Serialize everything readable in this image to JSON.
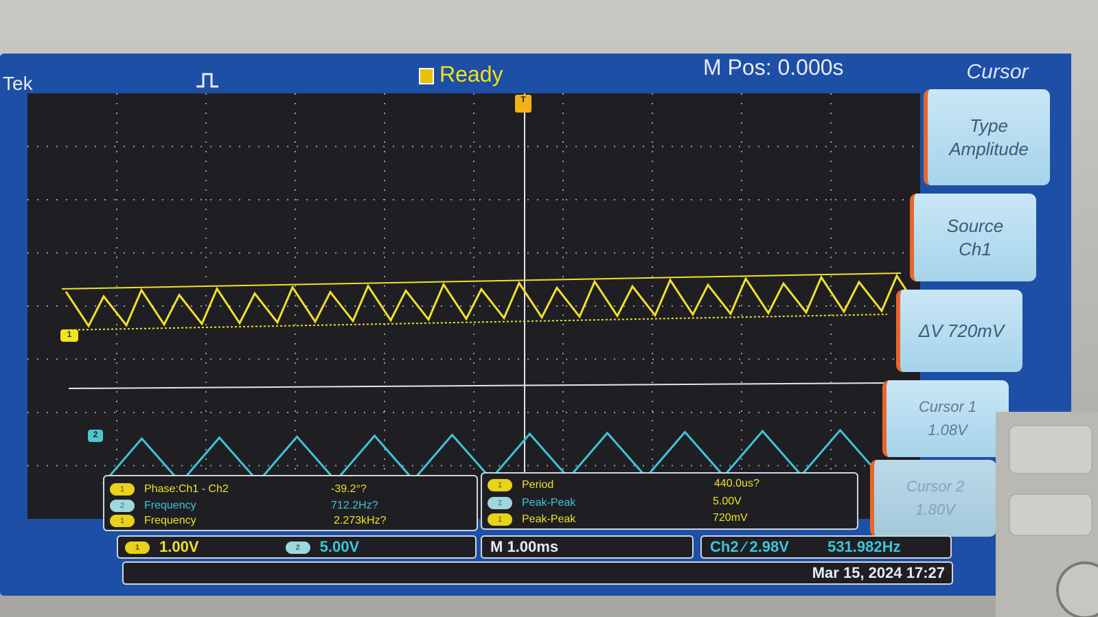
{
  "header": {
    "brand": "Tek",
    "status": "Ready",
    "mpos": "M Pos: 0.000s"
  },
  "side_menu": {
    "title": "Cursor",
    "buttons": [
      {
        "line1": "Type",
        "line2": "Amplitude"
      },
      {
        "line1": "Source",
        "line2": "Ch1"
      },
      {
        "line1": "ΔV 720mV",
        "line2": ""
      },
      {
        "line1": "Cursor 1",
        "line2": "1.08V"
      },
      {
        "line1": "Cursor 2",
        "line2": "1.80V"
      }
    ]
  },
  "markers": {
    "ch1": "1",
    "ch2": "2",
    "trigger": "T"
  },
  "measurements": {
    "left": [
      {
        "ch": "1",
        "name": "Phase:Ch1 - Ch2",
        "value": "-39.2°?"
      },
      {
        "ch": "2",
        "name": "Frequency",
        "value": "712.2Hz?"
      },
      {
        "ch": "1",
        "name": "Frequency",
        "value": "2.273kHz?"
      }
    ],
    "right": [
      {
        "ch": "1",
        "name": "Period",
        "value": "440.0us?"
      },
      {
        "ch": "2",
        "name": "Peak-Peak",
        "value": "5.00V"
      },
      {
        "ch": "1",
        "name": "Peak-Peak",
        "value": "720mV"
      }
    ]
  },
  "status_bar": {
    "ch1_scale": "1.00V",
    "ch2_scale": "5.00V",
    "ch1": "1",
    "ch2": "2",
    "timebase": "M 1.00ms",
    "trigger": "Ch2 ∕ 2.98V",
    "trigger_freq": "531.982Hz"
  },
  "datetime": "Mar 15, 2024 17:27",
  "colors": {
    "ch1": "#f0e12a",
    "ch2": "#3fc5d8",
    "screen_bg": "#1f1f23",
    "frame": "#1d4fa6"
  }
}
